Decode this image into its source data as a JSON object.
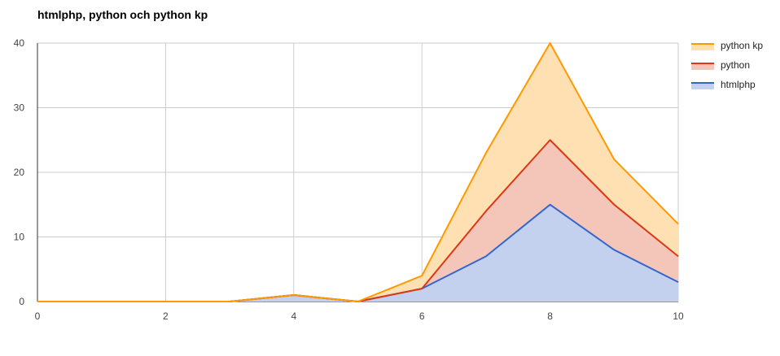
{
  "chart_data": {
    "type": "area",
    "stacked": true,
    "title": "htmlphp, python och python kp",
    "xlabel": "",
    "ylabel": "",
    "x": [
      0,
      1,
      2,
      3,
      4,
      5,
      6,
      7,
      8,
      9,
      10
    ],
    "xlim": [
      0,
      10
    ],
    "ylim": [
      0,
      40
    ],
    "x_ticks": [
      0,
      2,
      4,
      6,
      8,
      10
    ],
    "y_ticks": [
      0,
      10,
      20,
      30,
      40
    ],
    "grid": true,
    "legend_position": "right",
    "series": [
      {
        "name": "htmlphp",
        "color": "#3366cc",
        "fill": "#c3d1ef",
        "values": [
          0,
          0,
          0,
          0,
          1,
          0,
          2,
          7,
          15,
          8,
          3
        ]
      },
      {
        "name": "python",
        "color": "#dc3912",
        "fill": "#f4c6ba",
        "values": [
          0,
          0,
          0,
          0,
          0,
          0,
          0,
          7,
          10,
          7,
          4
        ]
      },
      {
        "name": "python kp",
        "color": "#ff9900",
        "fill": "#ffe0b2",
        "values": [
          0,
          0,
          0,
          0,
          0,
          0,
          2,
          9,
          15,
          7,
          5
        ]
      }
    ],
    "legend_order": [
      "python kp",
      "python",
      "htmlphp"
    ]
  }
}
